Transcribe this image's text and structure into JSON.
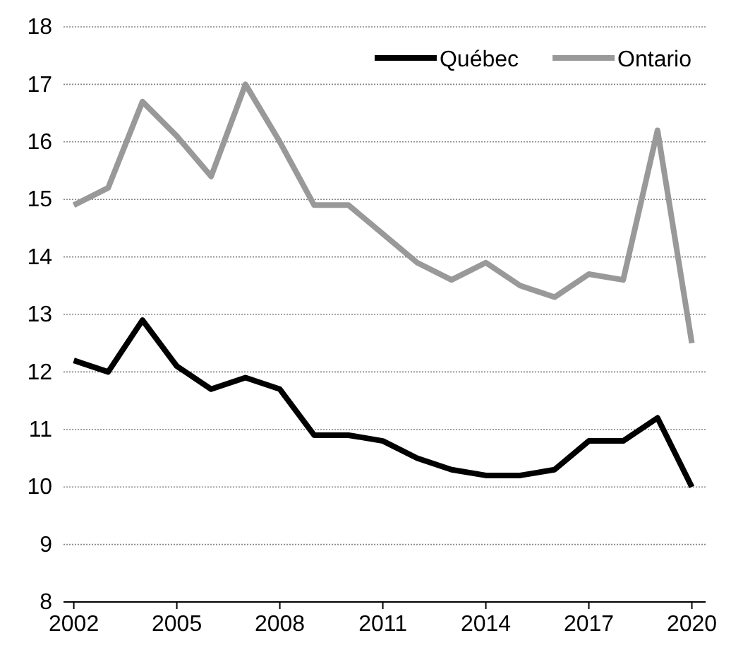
{
  "chart_data": {
    "type": "line",
    "x": [
      2002,
      2003,
      2004,
      2005,
      2006,
      2007,
      2008,
      2009,
      2010,
      2011,
      2012,
      2013,
      2014,
      2015,
      2016,
      2017,
      2018,
      2019,
      2020
    ],
    "series": [
      {
        "name": "Québec",
        "color": "#000000",
        "values": [
          12.2,
          12.0,
          12.9,
          12.1,
          11.7,
          11.9,
          11.7,
          10.9,
          10.9,
          10.8,
          10.5,
          10.3,
          10.2,
          10.2,
          10.3,
          10.8,
          10.8,
          11.2,
          10.0
        ]
      },
      {
        "name": "Ontario",
        "color": "#999999",
        "values": [
          14.9,
          15.2,
          16.7,
          16.1,
          15.4,
          17.0,
          16.0,
          14.9,
          14.9,
          14.4,
          13.9,
          13.6,
          13.9,
          13.5,
          13.3,
          13.7,
          13.6,
          16.2,
          12.5
        ]
      }
    ],
    "xlim": [
      2001.7,
      2020.4
    ],
    "xticks": [
      2002,
      2005,
      2008,
      2011,
      2014,
      2017,
      2020
    ],
    "ylim": [
      8,
      18
    ],
    "yticks": [
      8,
      9,
      10,
      11,
      12,
      13,
      14,
      15,
      16,
      17,
      18
    ],
    "grid": "y",
    "legend": "top right",
    "line_style": "solid",
    "marker": "none"
  }
}
